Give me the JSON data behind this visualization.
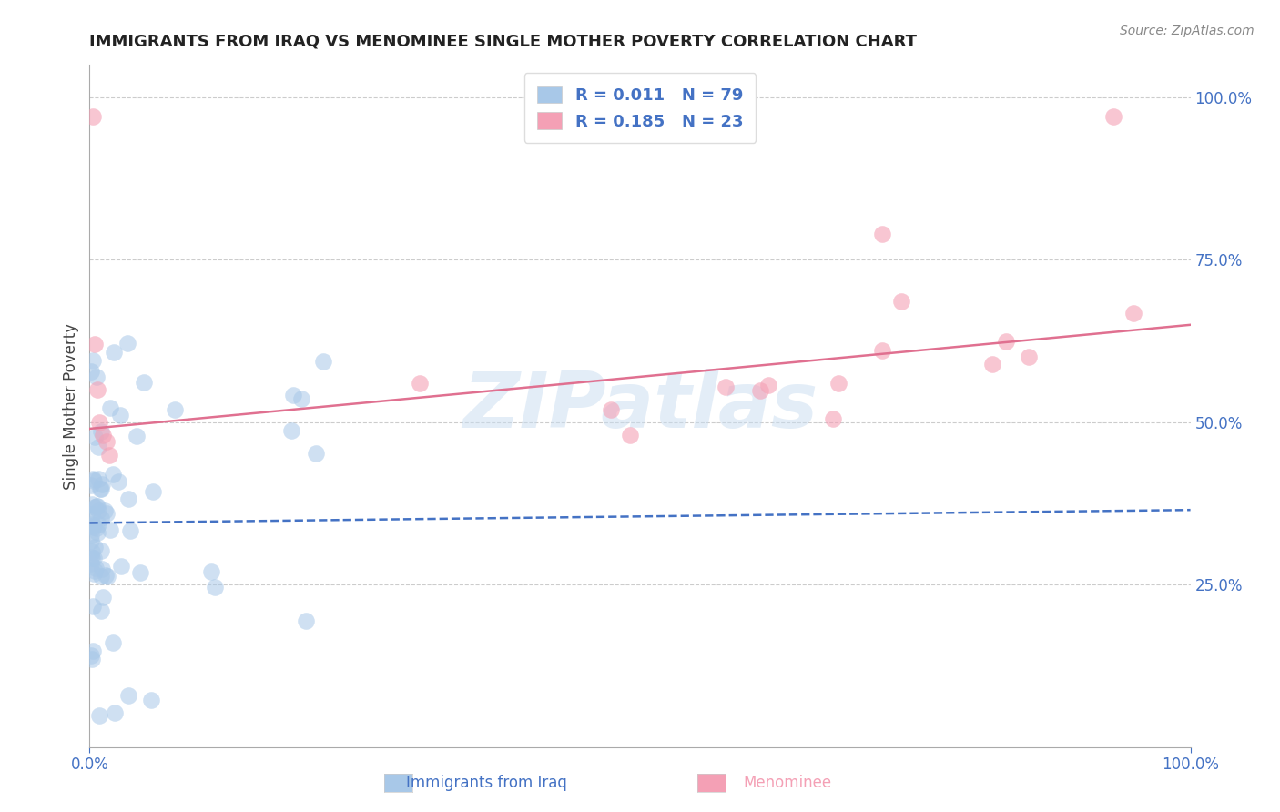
{
  "title": "IMMIGRANTS FROM IRAQ VS MENOMINEE SINGLE MOTHER POVERTY CORRELATION CHART",
  "source_text": "Source: ZipAtlas.com",
  "ylabel": "Single Mother Poverty",
  "watermark": "ZIPatlas",
  "blue_color": "#A8C8E8",
  "pink_color": "#F4A0B5",
  "blue_line_color": "#4472C4",
  "pink_line_color": "#E07090",
  "axis_label_color": "#4472C4",
  "title_color": "#222222",
  "source_color": "#888888",
  "grid_color": "#CCCCCC",
  "legend_label1": "R = 0.011   N = 79",
  "legend_label2": "R = 0.185   N = 23",
  "bottom_label1": "Immigrants from Iraq",
  "bottom_label2": "Menominee",
  "xlim": [
    0.0,
    1.0
  ],
  "ylim": [
    0.0,
    1.05
  ],
  "ytick_vals": [
    0.25,
    0.5,
    0.75,
    1.0
  ],
  "ytick_labels": [
    "25.0%",
    "50.0%",
    "75.0%",
    "100.0%"
  ],
  "xtick_vals": [
    0.0,
    1.0
  ],
  "xtick_labels": [
    "0.0%",
    "100.0%"
  ],
  "blue_trend_x": [
    0.0,
    1.0
  ],
  "blue_trend_y": [
    0.345,
    0.365
  ],
  "pink_trend_x": [
    0.0,
    1.0
  ],
  "pink_trend_y": [
    0.49,
    0.65
  ]
}
